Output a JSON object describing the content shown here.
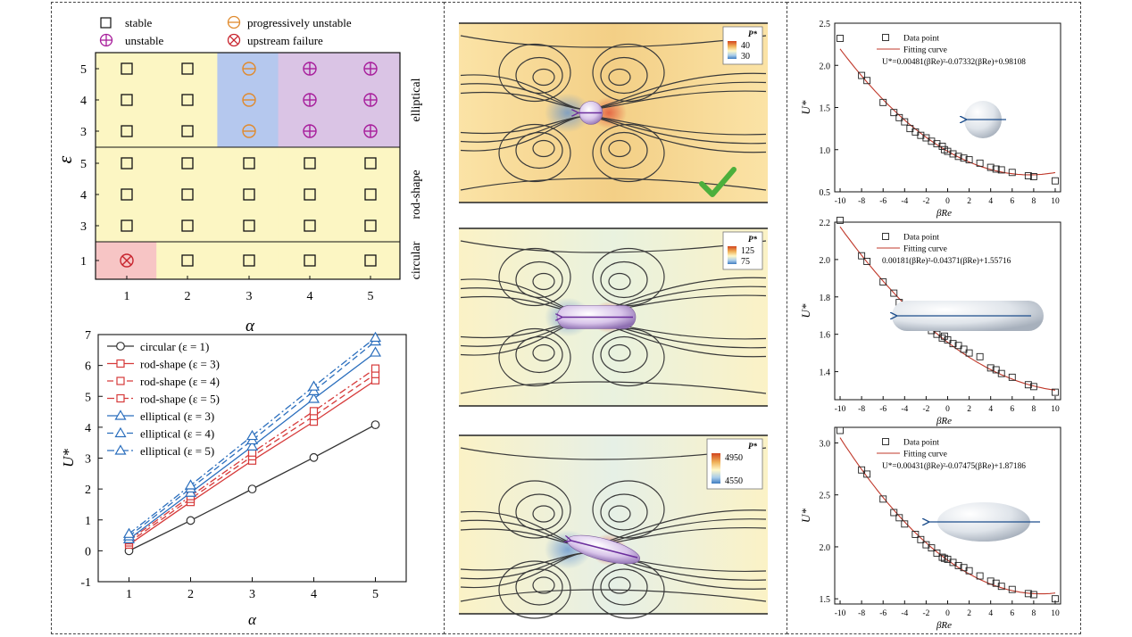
{
  "stability_map": {
    "legend": {
      "stable": "stable",
      "unstable": "unstable",
      "progressively_unstable": "progressively unstable",
      "upstream_failure": "upstream failure"
    },
    "xlabel": "α",
    "ylabel": "ε",
    "x_ticks": [
      "1",
      "2",
      "3",
      "4",
      "5"
    ],
    "groups": [
      {
        "label": "elliptical",
        "eps": [
          "5",
          "4",
          "3"
        ],
        "states": [
          [
            "stable",
            "stable",
            "progressive",
            "unstable",
            "unstable"
          ],
          [
            "stable",
            "stable",
            "progressive",
            "unstable",
            "unstable"
          ],
          [
            "stable",
            "stable",
            "progressive",
            "unstable",
            "unstable"
          ]
        ]
      },
      {
        "label": "rod-shape",
        "eps": [
          "5",
          "4",
          "3"
        ],
        "states": [
          [
            "stable",
            "stable",
            "stable",
            "stable",
            "stable"
          ],
          [
            "stable",
            "stable",
            "stable",
            "stable",
            "stable"
          ],
          [
            "stable",
            "stable",
            "stable",
            "stable",
            "stable"
          ]
        ]
      },
      {
        "label": "circular",
        "eps": [
          "1"
        ],
        "states": [
          [
            "failure",
            "stable",
            "stable",
            "stable",
            "stable"
          ]
        ]
      }
    ],
    "colors": {
      "base": "#fcf6c3",
      "failure": "#f7c5c5",
      "progressive": "#b5c8ee",
      "unstable": "#dac4e5",
      "progressive_marker": "#e08a2c",
      "unstable_marker": "#a71d9b",
      "failure_marker": "#c8242e"
    }
  },
  "chart_data": [
    {
      "type": "line",
      "x": [
        1,
        2,
        3,
        4,
        5
      ],
      "xlabel": "α",
      "ylabel": "U*",
      "xlim": [
        0.5,
        5.5
      ],
      "ylim": [
        -1,
        7
      ],
      "x_ticks": [
        "1",
        "2",
        "3",
        "4",
        "5"
      ],
      "y_ticks": [
        "-1",
        "0",
        "1",
        "2",
        "3",
        "4",
        "5",
        "6",
        "7"
      ],
      "legend_position": "top-left",
      "series": [
        {
          "name": "circular (ε = 1)",
          "marker": "circle",
          "dash": "solid",
          "color": "#333333",
          "values": [
            0.0,
            0.98,
            2.0,
            3.02,
            4.08
          ]
        },
        {
          "name": "rod-shape (ε = 3)",
          "marker": "square",
          "dash": "solid",
          "color": "#d63a3a",
          "values": [
            0.2,
            1.58,
            2.92,
            4.18,
            5.52
          ]
        },
        {
          "name": "rod-shape (ε = 4)",
          "marker": "square",
          "dash": "dashed",
          "color": "#d63a3a",
          "values": [
            0.27,
            1.68,
            3.06,
            4.36,
            5.72
          ]
        },
        {
          "name": "rod-shape (ε = 5)",
          "marker": "square",
          "dash": "dashdot",
          "color": "#d63a3a",
          "values": [
            0.34,
            1.77,
            3.18,
            4.52,
            5.9
          ]
        },
        {
          "name": "elliptical (ε = 3)",
          "marker": "triangle",
          "dash": "solid",
          "color": "#2a6ebd",
          "values": [
            0.38,
            1.88,
            3.38,
            4.92,
            6.42
          ]
        },
        {
          "name": "elliptical (ε = 4)",
          "marker": "triangle",
          "dash": "dashed",
          "color": "#2a6ebd",
          "values": [
            0.47,
            2.02,
            3.58,
            5.17,
            6.78
          ]
        },
        {
          "name": "elliptical (ε = 5)",
          "marker": "triangle",
          "dash": "dashdot",
          "color": "#2a6ebd",
          "values": [
            0.55,
            2.12,
            3.72,
            5.32,
            6.9
          ]
        }
      ]
    },
    {
      "type": "scatter",
      "xlabel": "βRe",
      "ylabel": "U*",
      "xlim": [
        -10.5,
        10.5
      ],
      "ylim": [
        0.5,
        2.5
      ],
      "x_ticks": [
        "-10",
        "-8",
        "-6",
        "-4",
        "-2",
        "0",
        "2",
        "4",
        "6",
        "8",
        "10"
      ],
      "y_ticks": [
        "0.5",
        "1.0",
        "1.5",
        "2.0",
        "2.5"
      ],
      "legend": [
        "Data point",
        "Fitting curve"
      ],
      "equation": "U*=0.00481(βRe)²-0.07332(βRe)+0.98108",
      "fit": {
        "a": 0.00481,
        "b": -0.07332,
        "c": 0.98108
      },
      "x": [
        -10,
        -8,
        -7.5,
        -6,
        -5,
        -4.5,
        -4,
        -3.5,
        -3,
        -2.5,
        -2,
        -1.5,
        -1,
        -0.5,
        -0.3,
        0,
        0.5,
        1,
        1.5,
        2,
        3,
        4,
        4.5,
        5,
        6,
        7.5,
        8,
        10
      ],
      "y": [
        2.32,
        1.88,
        1.82,
        1.56,
        1.44,
        1.38,
        1.33,
        1.25,
        1.21,
        1.17,
        1.14,
        1.1,
        1.07,
        1.04,
        1.0,
        0.98,
        0.95,
        0.92,
        0.9,
        0.88,
        0.84,
        0.79,
        0.77,
        0.76,
        0.73,
        0.69,
        0.68,
        0.63
      ]
    },
    {
      "type": "scatter",
      "xlabel": "βRe",
      "ylabel": "U*",
      "xlim": [
        -10.5,
        10.5
      ],
      "ylim": [
        1.25,
        2.2
      ],
      "x_ticks": [
        "-10",
        "-8",
        "-6",
        "-4",
        "-2",
        "0",
        "2",
        "4",
        "6",
        "8",
        "10"
      ],
      "y_ticks": [
        "1.4",
        "1.6",
        "1.8",
        "2.0",
        "2.2"
      ],
      "legend": [
        "Data point",
        "Fitting curve"
      ],
      "equation": "0.00181(βRe)²-0.04371(βRe)+1.55716",
      "fit": {
        "a": 0.00181,
        "b": -0.04371,
        "c": 1.55716
      },
      "x": [
        -10,
        -8,
        -7.5,
        -6,
        -5,
        -4.5,
        -4,
        -3,
        -2.5,
        -2,
        -1.5,
        -1,
        -0.5,
        -0.3,
        0,
        0.5,
        1,
        1.5,
        2,
        3,
        4,
        4.5,
        5,
        6,
        7.5,
        8,
        10
      ],
      "y": [
        2.21,
        2.02,
        1.99,
        1.88,
        1.82,
        1.77,
        1.74,
        1.68,
        1.66,
        1.64,
        1.62,
        1.6,
        1.58,
        1.59,
        1.57,
        1.55,
        1.54,
        1.52,
        1.5,
        1.48,
        1.42,
        1.41,
        1.39,
        1.37,
        1.33,
        1.32,
        1.29
      ]
    },
    {
      "type": "scatter",
      "xlabel": "βRe",
      "ylabel": "U*",
      "xlim": [
        -10.5,
        10.5
      ],
      "ylim": [
        1.45,
        3.15
      ],
      "x_ticks": [
        "-10",
        "-8",
        "-6",
        "-4",
        "-2",
        "0",
        "2",
        "4",
        "6",
        "8",
        "10"
      ],
      "y_ticks": [
        "1.5",
        "2.0",
        "2.5",
        "3.0"
      ],
      "legend": [
        "Data point",
        "Fitting curve"
      ],
      "equation": "U*=0.00431(βRe)²-0.07475(βRe)+1.87186",
      "fit": {
        "a": 0.00431,
        "b": -0.07475,
        "c": 1.87186
      },
      "x": [
        -10,
        -8,
        -7.5,
        -6,
        -5,
        -4.5,
        -4,
        -3,
        -2.5,
        -2,
        -1.5,
        -1,
        -0.5,
        -0.3,
        0,
        0.5,
        1,
        1.5,
        2,
        3,
        4,
        4.5,
        5,
        6,
        7.5,
        8,
        10
      ],
      "y": [
        3.12,
        2.74,
        2.7,
        2.46,
        2.33,
        2.28,
        2.22,
        2.12,
        2.07,
        2.02,
        1.99,
        1.94,
        1.9,
        1.89,
        1.88,
        1.85,
        1.82,
        1.8,
        1.77,
        1.72,
        1.67,
        1.65,
        1.62,
        1.59,
        1.55,
        1.54,
        1.5
      ]
    }
  ],
  "flow_fields": [
    {
      "label": "P*",
      "max": "40",
      "min": "30",
      "check": true
    },
    {
      "label": "P*",
      "max": "125",
      "min": "75",
      "check": false
    },
    {
      "label": "P*",
      "max": "4950",
      "min": "4550",
      "check": false
    }
  ],
  "colors": {
    "dash": "#444444",
    "stream": "#3a3a3a",
    "fit": "#c0392b",
    "check": "#4caf3c"
  }
}
